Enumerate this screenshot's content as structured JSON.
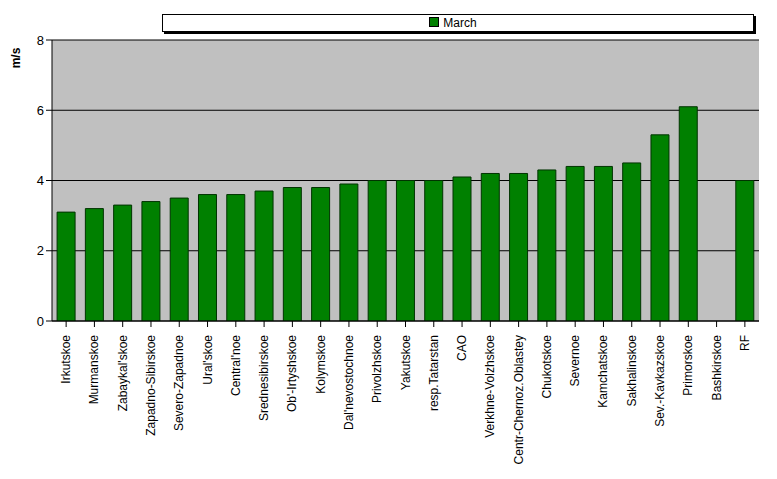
{
  "chart_data": {
    "type": "bar",
    "y_label": "m/s",
    "categories": [
      "Irkutskoe",
      "Murmanskoe",
      "Zabaykal'skoe",
      "Zapadno-Sibirskoe",
      "Severo-Zapadnoe",
      "Ural'skoe",
      "Central'noe",
      "Srednesibirskoe",
      "Ob'-Irtyshskoe",
      "Kolymskoe",
      "Dal'nevostochnoe",
      "Privolzhskoe",
      "Yakutskoe",
      "resp.Tatarstan",
      "CAO",
      "Verkhne-Volzhskoe",
      "Centr-Chernoz.Oblastey",
      "Chukotskoe",
      "Severnoe",
      "Kamchatskoe",
      "Sakhalinskoe",
      "Sev.-Kavkazskoe",
      "Primorskoe",
      "Bashkirskoe",
      "RF"
    ],
    "series": [
      {
        "name": "March",
        "color": "#008000",
        "values": [
          3.1,
          3.2,
          3.3,
          3.4,
          3.5,
          3.6,
          3.6,
          3.7,
          3.8,
          3.8,
          3.9,
          4.0,
          4.0,
          4.0,
          4.1,
          4.2,
          4.2,
          4.3,
          4.4,
          4.4,
          4.5,
          5.3,
          6.1,
          null,
          4.0
        ]
      }
    ],
    "ylim": [
      0,
      8
    ],
    "yticks": [
      0,
      2,
      4,
      6,
      8
    ],
    "grid": true,
    "legend": "top"
  }
}
